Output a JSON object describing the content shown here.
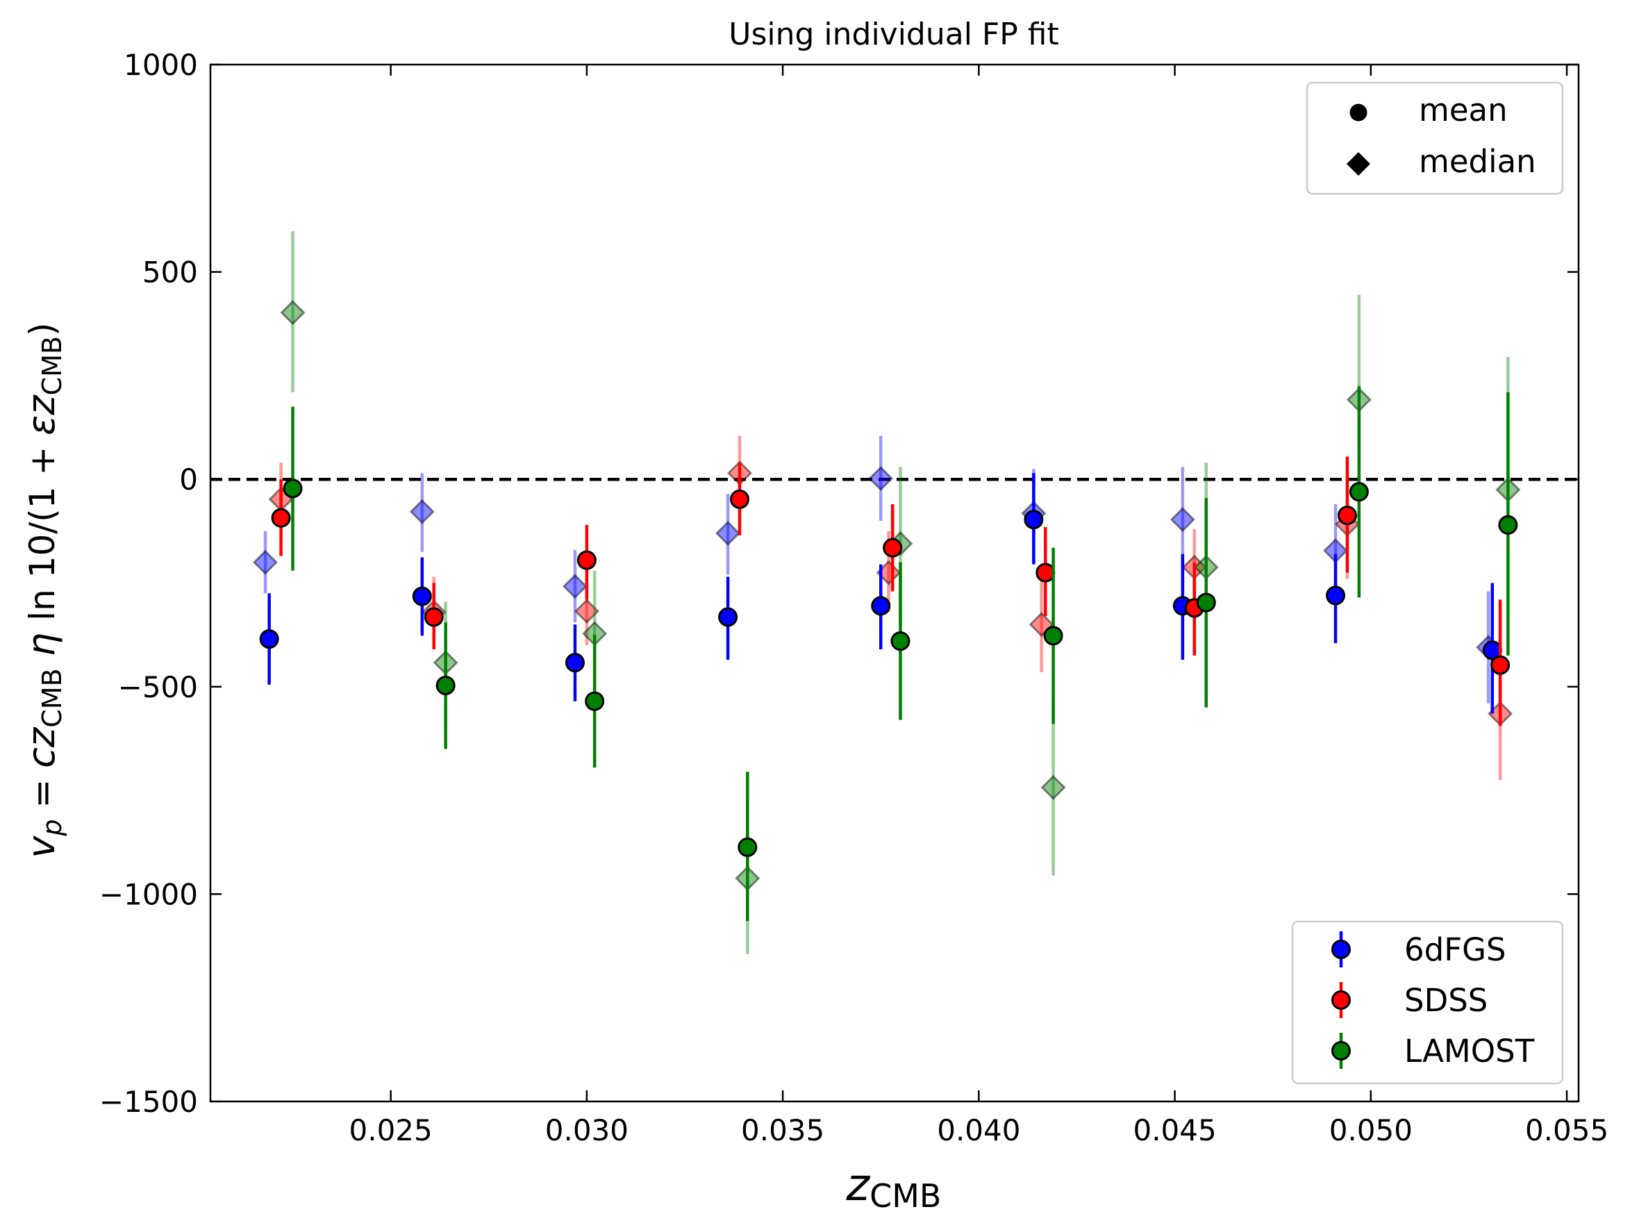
{
  "chart_data": {
    "type": "scatter",
    "title": "Using individual FP fit",
    "xlabel": {
      "main": "z",
      "sub": "CMB"
    },
    "ylabel": {
      "parts": [
        {
          "t": "v",
          "style": "italic"
        },
        {
          "t": "p",
          "style": "italic-sub"
        },
        {
          "t": " = ",
          "style": "normal"
        },
        {
          "t": "cz",
          "style": "italic"
        },
        {
          "t": "CMB",
          "style": "sub"
        },
        {
          "t": " η ",
          "style": "italic"
        },
        {
          "t": "ln 10/(1 + ",
          "style": "normal"
        },
        {
          "t": "εz",
          "style": "italic"
        },
        {
          "t": "CMB",
          "style": "sub"
        },
        {
          "t": ")",
          "style": "normal"
        }
      ]
    },
    "xlim": [
      0.0204,
      0.0553
    ],
    "ylim": [
      -1500,
      1000
    ],
    "xticks": [
      0.025,
      0.03,
      0.035,
      0.04,
      0.045,
      0.05,
      0.055
    ],
    "xtick_labels": [
      "0.025",
      "0.030",
      "0.035",
      "0.040",
      "0.045",
      "0.050",
      "0.055"
    ],
    "yticks": [
      -1500,
      -1000,
      -500,
      0,
      500,
      1000
    ],
    "ytick_labels": [
      "−1500",
      "−1000",
      "−500",
      "0",
      "500",
      "1000"
    ],
    "reference_line": {
      "y": 0,
      "style": "dashed",
      "color": "#000000"
    },
    "grid": false,
    "legend_markers": {
      "position": "top-right",
      "entries": [
        {
          "label": "mean",
          "marker": "circle"
        },
        {
          "label": "median",
          "marker": "diamond"
        }
      ]
    },
    "legend_series": {
      "position": "bottom-right",
      "entries": [
        {
          "label": "6dFGS",
          "color": "#0000ff"
        },
        {
          "label": "SDSS",
          "color": "#ff0000"
        },
        {
          "label": "LAMOST",
          "color": "#008000"
        }
      ]
    },
    "series": [
      {
        "name": "6dFGS",
        "color": "#0000ff",
        "mean": [
          {
            "x": 0.0219,
            "y": -385,
            "lo": -495,
            "hi": -275
          },
          {
            "x": 0.0258,
            "y": -282,
            "lo": -377,
            "hi": -188
          },
          {
            "x": 0.0297,
            "y": -442,
            "lo": -535,
            "hi": -350
          },
          {
            "x": 0.0336,
            "y": -332,
            "lo": -435,
            "hi": -235
          },
          {
            "x": 0.0375,
            "y": -305,
            "lo": -410,
            "hi": -205
          },
          {
            "x": 0.0414,
            "y": -97,
            "lo": -205,
            "hi": 15
          },
          {
            "x": 0.0452,
            "y": -305,
            "lo": -435,
            "hi": -180
          },
          {
            "x": 0.0491,
            "y": -280,
            "lo": -395,
            "hi": -180
          },
          {
            "x": 0.0531,
            "y": -412,
            "lo": -565,
            "hi": -250
          }
        ],
        "median": [
          {
            "x": 0.0218,
            "y": -200,
            "lo": -275,
            "hi": -125
          },
          {
            "x": 0.0258,
            "y": -78,
            "lo": -175,
            "hi": 15
          },
          {
            "x": 0.0297,
            "y": -258,
            "lo": -345,
            "hi": -170
          },
          {
            "x": 0.0336,
            "y": -130,
            "lo": -230,
            "hi": -35
          },
          {
            "x": 0.0375,
            "y": 2,
            "lo": -100,
            "hi": 105
          },
          {
            "x": 0.0414,
            "y": -82,
            "lo": -185,
            "hi": 25
          },
          {
            "x": 0.0452,
            "y": -97,
            "lo": -220,
            "hi": 30
          },
          {
            "x": 0.0491,
            "y": -172,
            "lo": -280,
            "hi": -60
          },
          {
            "x": 0.053,
            "y": -405,
            "lo": -540,
            "hi": -270
          }
        ]
      },
      {
        "name": "SDSS",
        "color": "#ff0000",
        "mean": [
          {
            "x": 0.0222,
            "y": -93,
            "lo": -185,
            "hi": 0
          },
          {
            "x": 0.0261,
            "y": -332,
            "lo": -410,
            "hi": -250
          },
          {
            "x": 0.03,
            "y": -195,
            "lo": -290,
            "hi": -110
          },
          {
            "x": 0.0339,
            "y": -48,
            "lo": -135,
            "hi": 40
          },
          {
            "x": 0.0378,
            "y": -165,
            "lo": -270,
            "hi": -60
          },
          {
            "x": 0.0417,
            "y": -225,
            "lo": -330,
            "hi": -115
          },
          {
            "x": 0.0455,
            "y": -310,
            "lo": -425,
            "hi": -200
          },
          {
            "x": 0.0494,
            "y": -87,
            "lo": -225,
            "hi": 55
          },
          {
            "x": 0.0533,
            "y": -448,
            "lo": -595,
            "hi": -290
          }
        ],
        "median": [
          {
            "x": 0.0222,
            "y": -48,
            "lo": -130,
            "hi": 40
          },
          {
            "x": 0.0261,
            "y": -320,
            "lo": -400,
            "hi": -235
          },
          {
            "x": 0.03,
            "y": -318,
            "lo": -400,
            "hi": -235
          },
          {
            "x": 0.0339,
            "y": 15,
            "lo": -75,
            "hi": 105
          },
          {
            "x": 0.0377,
            "y": -225,
            "lo": -320,
            "hi": -125
          },
          {
            "x": 0.0416,
            "y": -350,
            "lo": -465,
            "hi": -230
          },
          {
            "x": 0.0455,
            "y": -212,
            "lo": -300,
            "hi": -120
          },
          {
            "x": 0.0494,
            "y": -108,
            "lo": -240,
            "hi": 25
          },
          {
            "x": 0.0533,
            "y": -565,
            "lo": -725,
            "hi": -405
          }
        ]
      },
      {
        "name": "LAMOST",
        "color": "#008000",
        "mean": [
          {
            "x": 0.0225,
            "y": -22,
            "lo": -220,
            "hi": 175
          },
          {
            "x": 0.0264,
            "y": -497,
            "lo": -650,
            "hi": -345
          },
          {
            "x": 0.0302,
            "y": -535,
            "lo": -695,
            "hi": -375
          },
          {
            "x": 0.0341,
            "y": -887,
            "lo": -1065,
            "hi": -705
          },
          {
            "x": 0.038,
            "y": -390,
            "lo": -580,
            "hi": -200
          },
          {
            "x": 0.0419,
            "y": -377,
            "lo": -590,
            "hi": -165
          },
          {
            "x": 0.0458,
            "y": -297,
            "lo": -550,
            "hi": -45
          },
          {
            "x": 0.0497,
            "y": -30,
            "lo": -285,
            "hi": 225
          },
          {
            "x": 0.0535,
            "y": -110,
            "lo": -425,
            "hi": 210
          }
        ],
        "median": [
          {
            "x": 0.0225,
            "y": 402,
            "lo": 210,
            "hi": 598
          },
          {
            "x": 0.0264,
            "y": -442,
            "lo": -590,
            "hi": -295
          },
          {
            "x": 0.0302,
            "y": -372,
            "lo": -525,
            "hi": -220
          },
          {
            "x": 0.0341,
            "y": -962,
            "lo": -1145,
            "hi": -780
          },
          {
            "x": 0.038,
            "y": -155,
            "lo": -345,
            "hi": 30
          },
          {
            "x": 0.0419,
            "y": -743,
            "lo": -955,
            "hi": -530
          },
          {
            "x": 0.0458,
            "y": -212,
            "lo": -460,
            "hi": 40
          },
          {
            "x": 0.0497,
            "y": 192,
            "lo": -60,
            "hi": 445
          },
          {
            "x": 0.0535,
            "y": -25,
            "lo": -345,
            "hi": 295
          }
        ]
      }
    ]
  }
}
